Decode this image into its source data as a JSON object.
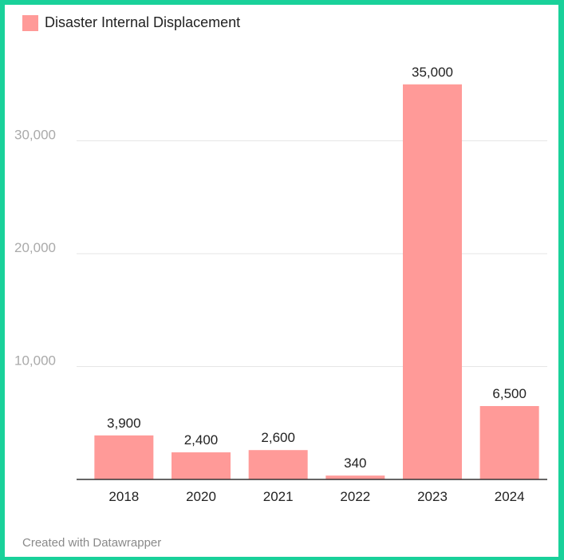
{
  "chart_data": {
    "type": "bar",
    "categories": [
      "2018",
      "2020",
      "2021",
      "2022",
      "2023",
      "2024"
    ],
    "series": [
      {
        "name": "Disaster Internal Displacement",
        "values": [
          3900,
          2400,
          2600,
          340,
          35000,
          6500
        ],
        "value_labels": [
          "3,900",
          "2,400",
          "2,600",
          "340",
          "35,000",
          "6,500"
        ]
      }
    ],
    "ylim": [
      0,
      37000
    ],
    "yticks": [
      10000,
      20000,
      30000
    ],
    "ytick_labels": [
      "10,000",
      "20,000",
      "30,000"
    ],
    "grid": true,
    "legend_position": "top-left",
    "colors": {
      "bar": "#ff9a98",
      "grid": "#e6e6e6",
      "tick_text": "#aaaaaa",
      "axis": "#333333",
      "frame": "#19d19a"
    }
  },
  "footer": {
    "credit": "Created with Datawrapper"
  }
}
